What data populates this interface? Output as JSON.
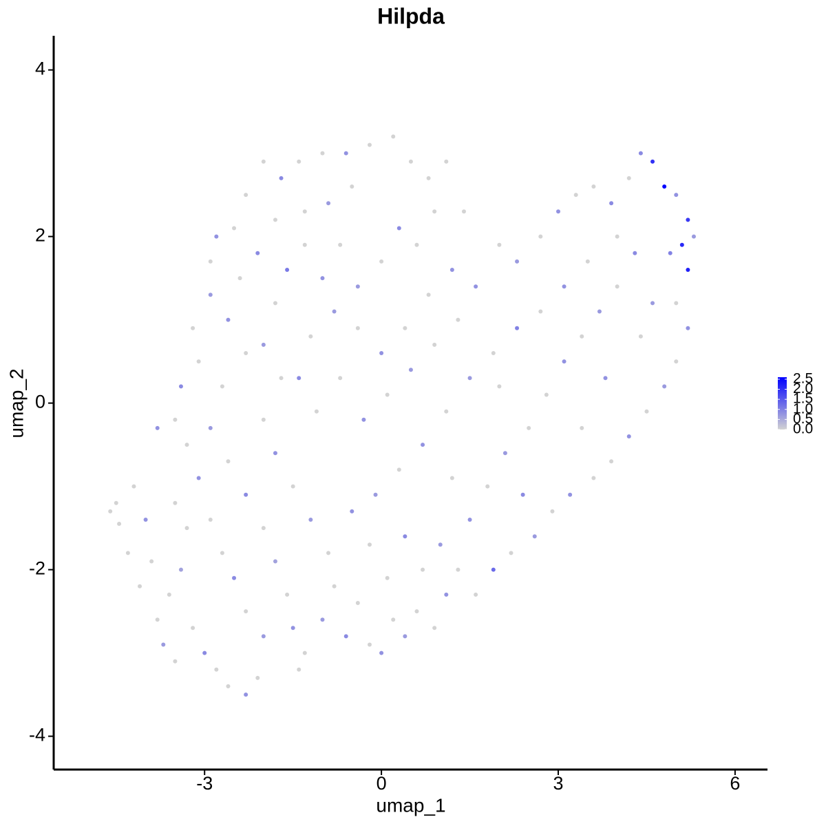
{
  "chart_data": {
    "type": "scatter",
    "title": "Hilpda",
    "x_label": "umap_1",
    "y_label": "umap_2",
    "xlim": [
      -5.56,
      6.55
    ],
    "ylim": [
      -4.4,
      4.41
    ],
    "xticks": [
      -3,
      0,
      3,
      6
    ],
    "yticks": [
      -4,
      -2,
      0,
      2,
      4
    ],
    "low_color": "#d3d3d3",
    "high_color": "#0000ff",
    "colorlim": [
      0,
      2.6
    ],
    "colorticks": [
      {
        "value": 0,
        "label": "0.0"
      },
      {
        "value": 0.5,
        "label": "0.5"
      },
      {
        "value": 1,
        "label": "1.0"
      },
      {
        "value": 1.5,
        "label": "1.5"
      },
      {
        "value": 2,
        "label": "2.0"
      },
      {
        "value": 2.5,
        "label": "2.5"
      }
    ],
    "points": [
      [
        -4.6,
        -1.3,
        0
      ],
      [
        -4.5,
        -1.2,
        0
      ],
      [
        -4.45,
        -1.45,
        0
      ],
      [
        -4.3,
        -1.8,
        0
      ],
      [
        -4.0,
        -1.4,
        0.8
      ],
      [
        -3.9,
        -1.9,
        0
      ],
      [
        -4.1,
        -2.2,
        0
      ],
      [
        -3.8,
        -2.6,
        0
      ],
      [
        -3.7,
        -2.9,
        0.7
      ],
      [
        -3.5,
        -3.1,
        0
      ],
      [
        -3.6,
        -2.3,
        0
      ],
      [
        -3.4,
        -2.0,
        0.6
      ],
      [
        -3.3,
        -1.5,
        0
      ],
      [
        -3.5,
        -1.2,
        0
      ],
      [
        -3.2,
        -2.7,
        0
      ],
      [
        -3.0,
        -3.0,
        0.9
      ],
      [
        -2.8,
        -3.2,
        0
      ],
      [
        -2.6,
        -3.4,
        0
      ],
      [
        -2.3,
        -3.5,
        0.8
      ],
      [
        -2.1,
        -3.3,
        0
      ],
      [
        -2.0,
        -2.8,
        0.7
      ],
      [
        -2.3,
        -2.5,
        0
      ],
      [
        -2.5,
        -2.1,
        0.9
      ],
      [
        -2.7,
        -1.8,
        0
      ],
      [
        -2.9,
        -1.4,
        0
      ],
      [
        -3.1,
        -0.9,
        0.8
      ],
      [
        -3.3,
        -0.5,
        0
      ],
      [
        -3.5,
        -0.2,
        0
      ],
      [
        -3.4,
        0.2,
        0.9
      ],
      [
        -3.1,
        0.5,
        0
      ],
      [
        -3.2,
        0.9,
        0
      ],
      [
        -2.9,
        1.3,
        0.7
      ],
      [
        -2.9,
        1.7,
        0
      ],
      [
        -2.8,
        2.0,
        0.8
      ],
      [
        -2.5,
        2.1,
        0
      ],
      [
        -2.3,
        2.5,
        0
      ],
      [
        -2.0,
        2.9,
        0
      ],
      [
        -1.7,
        2.7,
        0.9
      ],
      [
        -1.4,
        2.9,
        0
      ],
      [
        -1.0,
        3.0,
        0
      ],
      [
        -0.6,
        3.0,
        0.8
      ],
      [
        -0.2,
        3.1,
        0
      ],
      [
        0.2,
        3.2,
        0
      ],
      [
        0.5,
        2.9,
        0
      ],
      [
        0.8,
        2.7,
        0
      ],
      [
        1.1,
        2.9,
        0
      ],
      [
        -0.5,
        2.6,
        0
      ],
      [
        -0.9,
        2.4,
        0.7
      ],
      [
        -1.3,
        2.3,
        0
      ],
      [
        -1.8,
        2.2,
        0
      ],
      [
        -2.1,
        1.8,
        0.9
      ],
      [
        -2.4,
        1.5,
        0
      ],
      [
        -2.6,
        1.0,
        0.8
      ],
      [
        -2.3,
        0.6,
        0
      ],
      [
        -2.7,
        0.2,
        0
      ],
      [
        -2.9,
        -0.3,
        0.7
      ],
      [
        -2.6,
        -0.7,
        0
      ],
      [
        -2.3,
        -1.1,
        0.9
      ],
      [
        -2.0,
        -1.5,
        0
      ],
      [
        -1.8,
        -1.9,
        0.6
      ],
      [
        -1.6,
        -2.3,
        0
      ],
      [
        -1.5,
        -2.7,
        0.8
      ],
      [
        -1.3,
        -3.0,
        0
      ],
      [
        -1.4,
        -3.2,
        0
      ],
      [
        -1.0,
        -2.6,
        0.7
      ],
      [
        -0.8,
        -2.2,
        0
      ],
      [
        -0.6,
        -2.8,
        0.9
      ],
      [
        -0.4,
        -2.4,
        0
      ],
      [
        -0.2,
        -2.9,
        0
      ],
      [
        0.0,
        -3.0,
        0.8
      ],
      [
        0.2,
        -2.6,
        0
      ],
      [
        0.4,
        -2.8,
        0.7
      ],
      [
        0.6,
        -2.5,
        0
      ],
      [
        0.9,
        -2.7,
        0
      ],
      [
        1.1,
        -2.3,
        0.8
      ],
      [
        1.3,
        -2.0,
        0
      ],
      [
        1.0,
        -1.7,
        0.7
      ],
      [
        0.7,
        -2.0,
        0
      ],
      [
        0.4,
        -1.6,
        0.9
      ],
      [
        0.1,
        -2.1,
        0
      ],
      [
        -0.2,
        -1.7,
        0
      ],
      [
        -0.5,
        -1.3,
        0.8
      ],
      [
        -0.9,
        -1.8,
        0
      ],
      [
        -1.2,
        -1.4,
        0.7
      ],
      [
        -1.5,
        -1.0,
        0
      ],
      [
        -1.8,
        -0.6,
        0.8
      ],
      [
        -2.0,
        -0.2,
        0
      ],
      [
        -1.7,
        0.3,
        0
      ],
      [
        -2.0,
        0.7,
        0.7
      ],
      [
        -1.8,
        1.2,
        0
      ],
      [
        -1.6,
        1.6,
        1.1
      ],
      [
        -1.3,
        1.9,
        0
      ],
      [
        -1.0,
        1.5,
        0.8
      ],
      [
        -0.7,
        1.9,
        0
      ],
      [
        -0.4,
        1.4,
        0.7
      ],
      [
        0.0,
        1.7,
        0
      ],
      [
        0.3,
        2.1,
        0.9
      ],
      [
        0.6,
        1.9,
        0
      ],
      [
        0.9,
        2.3,
        0
      ],
      [
        1.2,
        1.6,
        0.8
      ],
      [
        0.8,
        1.3,
        0
      ],
      [
        0.4,
        0.9,
        0
      ],
      [
        0.0,
        0.6,
        0.8
      ],
      [
        -0.4,
        0.9,
        0
      ],
      [
        -0.8,
        1.1,
        0.7
      ],
      [
        -1.2,
        0.8,
        0
      ],
      [
        -1.4,
        0.3,
        0.9
      ],
      [
        -1.1,
        -0.1,
        0
      ],
      [
        -0.7,
        0.3,
        0
      ],
      [
        -0.3,
        -0.2,
        0.8
      ],
      [
        0.1,
        0.1,
        0
      ],
      [
        0.5,
        0.4,
        0.7
      ],
      [
        0.9,
        0.7,
        0
      ],
      [
        1.3,
        1.0,
        0
      ],
      [
        1.6,
        1.4,
        0.8
      ],
      [
        2.0,
        1.9,
        0
      ],
      [
        2.3,
        1.7,
        0.7
      ],
      [
        2.7,
        2.0,
        0
      ],
      [
        3.0,
        2.3,
        0.8
      ],
      [
        3.3,
        2.5,
        0
      ],
      [
        3.6,
        2.6,
        0
      ],
      [
        3.9,
        2.4,
        0.9
      ],
      [
        4.2,
        2.7,
        0
      ],
      [
        4.4,
        3.0,
        0.9
      ],
      [
        4.6,
        2.9,
        2.0
      ],
      [
        4.8,
        2.6,
        2.6
      ],
      [
        5.0,
        2.5,
        0.8
      ],
      [
        5.2,
        2.2,
        1.9
      ],
      [
        5.1,
        1.9,
        2.1
      ],
      [
        5.3,
        2.0,
        0.7
      ],
      [
        5.2,
        1.6,
        2.2
      ],
      [
        4.9,
        1.8,
        1.0
      ],
      [
        5.0,
        1.2,
        0
      ],
      [
        5.2,
        0.9,
        0.8
      ],
      [
        5.0,
        0.5,
        0
      ],
      [
        4.8,
        0.2,
        0.7
      ],
      [
        4.5,
        -0.1,
        0
      ],
      [
        4.2,
        -0.4,
        0.8
      ],
      [
        3.9,
        -0.7,
        0
      ],
      [
        3.6,
        -0.9,
        0
      ],
      [
        3.2,
        -1.1,
        0.8
      ],
      [
        2.9,
        -1.3,
        0
      ],
      [
        2.6,
        -1.6,
        0.7
      ],
      [
        2.2,
        -1.8,
        0
      ],
      [
        1.9,
        -2.0,
        1.3
      ],
      [
        1.6,
        -2.3,
        0
      ],
      [
        1.5,
        -1.4,
        0.8
      ],
      [
        1.8,
        -1.0,
        0
      ],
      [
        2.1,
        -0.6,
        0.7
      ],
      [
        2.5,
        -0.3,
        0
      ],
      [
        2.8,
        0.1,
        0
      ],
      [
        3.1,
        0.5,
        0.8
      ],
      [
        3.4,
        0.8,
        0
      ],
      [
        3.7,
        1.1,
        0.7
      ],
      [
        4.0,
        1.4,
        0
      ],
      [
        4.3,
        1.8,
        0.9
      ],
      [
        4.0,
        2.0,
        0
      ],
      [
        3.5,
        1.7,
        0
      ],
      [
        3.1,
        1.4,
        0.8
      ],
      [
        2.7,
        1.1,
        0
      ],
      [
        2.3,
        0.9,
        1.0
      ],
      [
        1.9,
        0.6,
        0
      ],
      [
        1.5,
        0.3,
        0.7
      ],
      [
        1.1,
        -0.1,
        0
      ],
      [
        0.7,
        -0.5,
        0.8
      ],
      [
        0.3,
        -0.8,
        0
      ],
      [
        -0.1,
        -1.1,
        0.7
      ],
      [
        1.2,
        -0.9,
        0
      ],
      [
        2.0,
        0.2,
        0
      ],
      [
        3.8,
        0.3,
        0.8
      ],
      [
        4.4,
        0.8,
        0
      ],
      [
        4.6,
        1.2,
        0.7
      ],
      [
        3.4,
        -0.3,
        0
      ],
      [
        2.4,
        -1.1,
        0.9
      ],
      [
        1.4,
        2.3,
        0
      ],
      [
        -3.8,
        -0.3,
        0.8
      ],
      [
        -4.2,
        -1.0,
        0
      ]
    ]
  }
}
